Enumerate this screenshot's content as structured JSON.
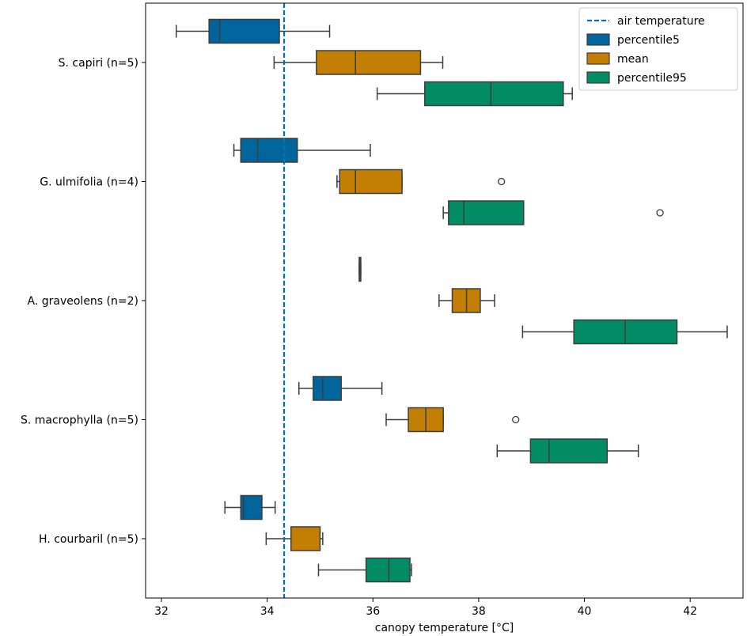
{
  "chart_data": {
    "type": "boxplot",
    "orientation": "horizontal",
    "xlabel": "canopy temperature [°C]",
    "ylabel": "",
    "xlim": [
      31.7,
      43.0
    ],
    "xticks": [
      32,
      34,
      36,
      38,
      40,
      42
    ],
    "categories": [
      "S. capiri (n=5)",
      "G. ulmifolia (n=4)",
      "A. graveolens (n=2)",
      "S. macrophylla (n=5)",
      "H. courbaril (n=5)"
    ],
    "reference_line": {
      "name": "air temperature",
      "x": 34.32,
      "color": "#0173b2",
      "style": "dashed"
    },
    "legend_position": "upper right",
    "series": [
      {
        "name": "percentile5",
        "color": "#0173b2",
        "boxes": [
          {
            "whisker_low": 32.28,
            "q1": 32.9,
            "median": 33.1,
            "q3": 34.23,
            "whisker_high": 35.18,
            "outliers": []
          },
          {
            "whisker_low": 33.37,
            "q1": 33.5,
            "median": 33.82,
            "q3": 34.57,
            "whisker_high": 35.95,
            "outliers": []
          },
          {
            "whisker_low": 35.74,
            "q1": 35.74,
            "median": 35.76,
            "q3": 35.77,
            "whisker_high": 35.77,
            "outliers": []
          },
          {
            "whisker_low": 34.6,
            "q1": 34.87,
            "median": 35.05,
            "q3": 35.4,
            "whisker_high": 36.17,
            "outliers": []
          },
          {
            "whisker_low": 33.2,
            "q1": 33.5,
            "median": 33.55,
            "q3": 33.9,
            "whisker_high": 34.15,
            "outliers": []
          }
        ]
      },
      {
        "name": "mean",
        "color": "#de8f05",
        "boxes": [
          {
            "whisker_low": 34.13,
            "q1": 34.93,
            "median": 35.67,
            "q3": 36.9,
            "whisker_high": 37.32,
            "outliers": []
          },
          {
            "whisker_low": 35.32,
            "q1": 35.37,
            "median": 35.67,
            "q3": 36.55,
            "whisker_high": 36.55,
            "outliers": [
              38.43
            ]
          },
          {
            "whisker_low": 37.25,
            "q1": 37.5,
            "median": 37.77,
            "q3": 38.03,
            "whisker_high": 38.3,
            "outliers": []
          },
          {
            "whisker_low": 36.25,
            "q1": 36.67,
            "median": 37.0,
            "q3": 37.33,
            "whisker_high": 37.33,
            "outliers": [
              38.7
            ]
          },
          {
            "whisker_low": 33.98,
            "q1": 34.45,
            "median": 34.45,
            "q3": 35.0,
            "whisker_high": 35.05,
            "outliers": []
          }
        ]
      },
      {
        "name": "percentile95",
        "color": "#029e73",
        "boxes": [
          {
            "whisker_low": 36.08,
            "q1": 36.98,
            "median": 38.23,
            "q3": 39.6,
            "whisker_high": 39.77,
            "outliers": []
          },
          {
            "whisker_low": 37.33,
            "q1": 37.43,
            "median": 37.72,
            "q3": 38.85,
            "whisker_high": 38.85,
            "outliers": [
              41.43
            ]
          },
          {
            "whisker_low": 38.83,
            "q1": 39.8,
            "median": 40.77,
            "q3": 41.75,
            "whisker_high": 42.7,
            "outliers": []
          },
          {
            "whisker_low": 38.35,
            "q1": 38.98,
            "median": 39.33,
            "q3": 40.43,
            "whisker_high": 41.02,
            "outliers": []
          },
          {
            "whisker_low": 34.97,
            "q1": 35.87,
            "median": 36.3,
            "q3": 36.7,
            "whisker_high": 36.73,
            "outliers": []
          }
        ]
      }
    ]
  }
}
